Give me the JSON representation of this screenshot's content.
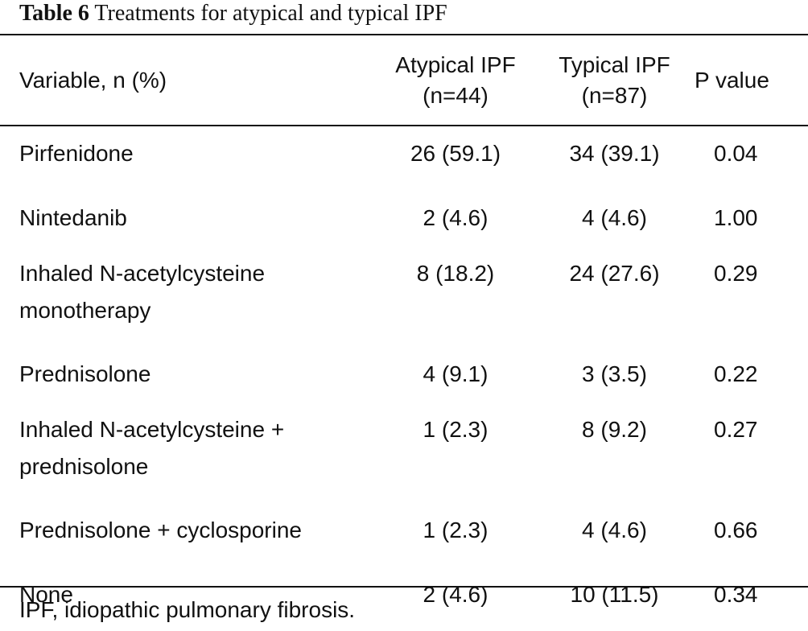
{
  "table": {
    "caption_label": "Table 6",
    "caption_text": "Treatments for atypical and typical IPF",
    "headers": {
      "variable": "Variable, n (%)",
      "atypical_line1": "Atypical IPF",
      "atypical_line2": "(n=44)",
      "typical_line1": "Typical IPF",
      "typical_line2": "(n=87)",
      "p_value": "P value"
    },
    "rows": [
      {
        "variable": "Pirfenidone",
        "atypical": "26 (59.1)",
        "typical": "34 (39.1)",
        "p": "0.04"
      },
      {
        "variable": "Nintedanib",
        "atypical": "2 (4.6)",
        "typical": "4 (4.6)",
        "p": "1.00"
      },
      {
        "variable_line1": "Inhaled N-acetylcysteine",
        "variable_line2": "monotherapy",
        "atypical": "8 (18.2)",
        "typical": "24 (27.6)",
        "p": "0.29"
      },
      {
        "variable": "Prednisolone",
        "atypical": "4 (9.1)",
        "typical": "3 (3.5)",
        "p": "0.22"
      },
      {
        "variable_line1": "Inhaled N-acetylcysteine +",
        "variable_line2": "prednisolone",
        "atypical": "1 (2.3)",
        "typical": "8 (9.2)",
        "p": "0.27"
      },
      {
        "variable": "Prednisolone + cyclosporine",
        "atypical": "1 (2.3)",
        "typical": "4 (4.6)",
        "p": "0.66"
      },
      {
        "variable": "None",
        "atypical": "2 (4.6)",
        "typical": "10 (11.5)",
        "p": "0.34"
      }
    ],
    "footnote": "IPF, idiopathic pulmonary fibrosis."
  }
}
